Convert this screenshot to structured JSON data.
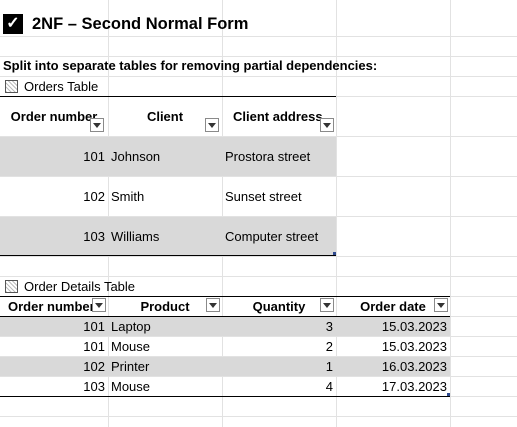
{
  "sheet": {
    "title": "2NF – Second Normal Form",
    "note": "Split into separate tables for removing partial dependencies:"
  },
  "orders_table": {
    "label": "Orders Table",
    "headers": [
      "Order number",
      "Client",
      "Client address"
    ],
    "rows": [
      [
        "101",
        "Johnson",
        "Prostora street"
      ],
      [
        "102",
        "Smith",
        "Sunset street"
      ],
      [
        "103",
        "Williams",
        "Computer street"
      ]
    ]
  },
  "details_table": {
    "label": "Order Details Table",
    "headers": [
      "Order number",
      "Product",
      "Quantity",
      "Order date"
    ],
    "rows": [
      [
        "101",
        "Laptop",
        "3",
        "15.03.2023"
      ],
      [
        "101",
        "Mouse",
        "2",
        "15.03.2023"
      ],
      [
        "102",
        "Printer",
        "1",
        "16.03.2023"
      ],
      [
        "103",
        "Mouse",
        "4",
        "17.03.2023"
      ]
    ]
  },
  "icons": {
    "title_checkbox": "checkbox-checked-icon",
    "table_icon": "table-icon",
    "filter_button": "filter-dropdown-icon"
  },
  "colors": {
    "band": "#d9d9d9",
    "gridline": "#e2e2e2",
    "table_border": "#000000",
    "resize_handle": "#2e4a8f"
  }
}
